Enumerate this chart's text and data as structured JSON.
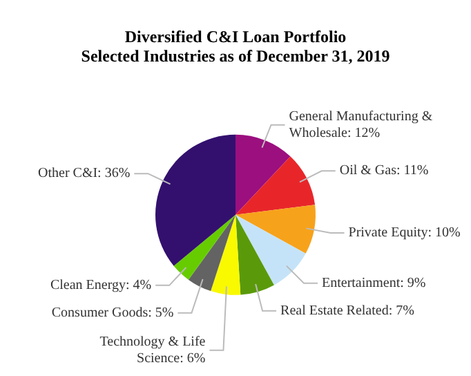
{
  "chart_data": {
    "type": "pie",
    "title": "Diversified C&I Loan Portfolio",
    "subtitle": "Selected Industries as of December 31, 2019",
    "categories": [
      "General Manufacturing & Wholesale",
      "Oil & Gas",
      "Private Equity",
      "Entertainment",
      "Real Estate Related",
      "Technology & Life Science",
      "Consumer Goods",
      "Clean Energy",
      "Other C&I"
    ],
    "values": [
      12,
      11,
      10,
      9,
      7,
      6,
      5,
      4,
      36
    ],
    "value_labels": [
      "12%",
      "11%",
      "10%",
      "9%",
      "7%",
      "6%",
      "5%",
      "4%",
      "36%"
    ],
    "colors": [
      "#9b0f7f",
      "#e8262a",
      "#f7a21b",
      "#c5e3f8",
      "#5a9a0a",
      "#f9f900",
      "#636363",
      "#66cc00",
      "#33106e"
    ],
    "legend": false
  }
}
